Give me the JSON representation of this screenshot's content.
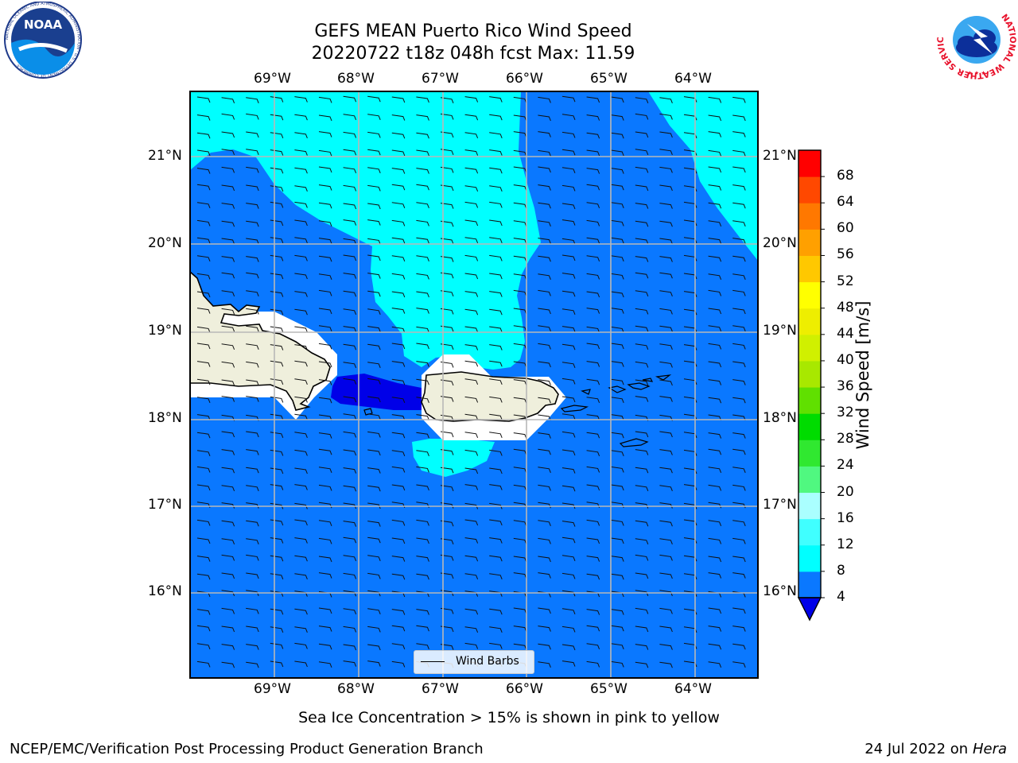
{
  "header": {
    "title_line1": "GEFS MEAN Puerto Rico Wind Speed",
    "title_line2": "20220722 t18z 048h fcst   Max: 11.59"
  },
  "logos": {
    "noaa_text": "NOAA",
    "noaa_ring": "NATIONAL OCEANIC AND ATMOSPHERIC ADMINISTRATION · U.S. DEPARTMENT OF COMMERCE",
    "nws_ring": "NATIONAL WEATHER SERVICE"
  },
  "map": {
    "lon_labels": [
      "69°W",
      "68°W",
      "67°W",
      "66°W",
      "65°W",
      "64°W"
    ],
    "lat_labels": [
      "21°N",
      "20°N",
      "19°N",
      "18°N",
      "17°N",
      "16°N"
    ],
    "legend_label": "Wind Barbs",
    "colors": {
      "ocean_deep": "#0000e8",
      "ocean_main": "#0a78ff",
      "ocean_light": "#00ffff",
      "land": "#efefdc",
      "mask": "#ffffff"
    }
  },
  "colorbar": {
    "label": "Wind Speed [m/s]",
    "ticks": [
      "4",
      "8",
      "12",
      "16",
      "20",
      "24",
      "28",
      "32",
      "36",
      "40",
      "44",
      "48",
      "52",
      "56",
      "60",
      "64",
      "68"
    ],
    "colors": [
      "#0a78ff",
      "#00ffff",
      "#40ffff",
      "#aaffff",
      "#50f880",
      "#30e830",
      "#00dc00",
      "#60e000",
      "#a8e800",
      "#d0f000",
      "#eeee00",
      "#ffff00",
      "#ffc800",
      "#ffa000",
      "#ff7800",
      "#ff4800",
      "#ff0000"
    ],
    "extend_color": "#0000e8"
  },
  "footer": {
    "note": "Sea Ice Concentration > 15% is shown in pink to yellow",
    "credit_left": "NCEP/EMC/Verification Post Processing Product Generation Branch",
    "credit_date": "24 Jul 2022 on ",
    "credit_host": "Hera"
  }
}
